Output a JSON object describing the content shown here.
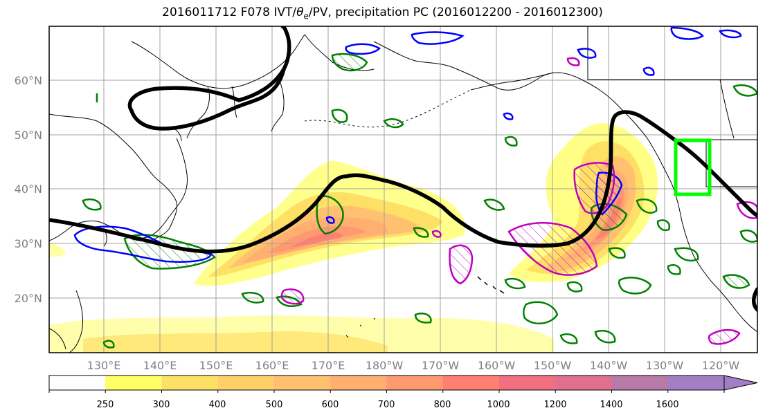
{
  "title": {
    "prefix": "2016011712 F078 IVT/",
    "theta": "θ",
    "sub": "e",
    "suffix": "/PV, precipitation PC (2016012200 - 2016012300)"
  },
  "lat_labels": [
    "60°N",
    "50°N",
    "40°N",
    "30°N",
    "20°N"
  ],
  "lon_labels": [
    "130°E",
    "140°E",
    "150°E",
    "160°E",
    "170°E",
    "180°W",
    "170°W",
    "160°W",
    "150°W",
    "140°W",
    "130°W",
    "120°W"
  ],
  "colorbar": {
    "levels": [
      "250",
      "300",
      "400",
      "500",
      "600",
      "700",
      "800",
      "1000",
      "1200",
      "1400",
      "1600"
    ],
    "colors": [
      "#ffffff",
      "#ffff66",
      "#ffe066",
      "#ffd06a",
      "#ffc070",
      "#ffb070",
      "#ff9a70",
      "#ff8070",
      "#f07080",
      "#e07090",
      "#b87aa8",
      "#a47ec4"
    ]
  },
  "contour_colors": {
    "pv_line": "#000000",
    "precip_green": "#008000",
    "precip_blue": "#0000ff",
    "precip_magenta": "#c000c0",
    "target_box": "#00ff00"
  }
}
